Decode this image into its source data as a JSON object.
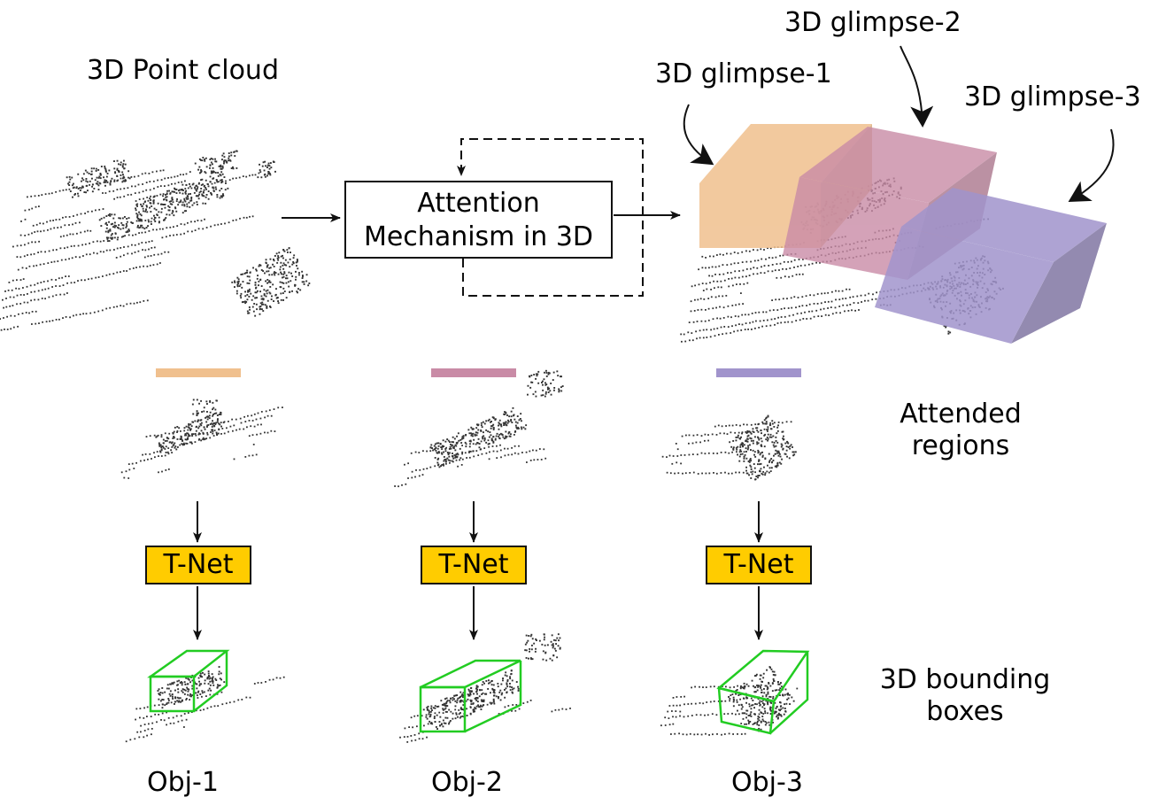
{
  "labels": {
    "point_cloud": "3D Point cloud",
    "attention_line1": "Attention",
    "attention_line2": "Mechanism in 3D",
    "glimpse_1": "3D glimpse-1",
    "glimpse_2": "3D glimpse-2",
    "glimpse_3": "3D glimpse-3",
    "attended_line1": "Attended",
    "attended_line2": "regions",
    "bbox_line1": "3D bounding",
    "bbox_line2": "boxes",
    "tnet": "T-Net",
    "obj_1": "Obj-1",
    "obj_2": "Obj-2",
    "obj_3": "Obj-3"
  },
  "colors": {
    "glimpse_1": "#f0c08e",
    "glimpse_2": "#c98ba6",
    "glimpse_3": "#a194cc",
    "tnet_fill": "#ffcc00",
    "bbox_stroke": "#22cc22",
    "points": "#333333"
  }
}
